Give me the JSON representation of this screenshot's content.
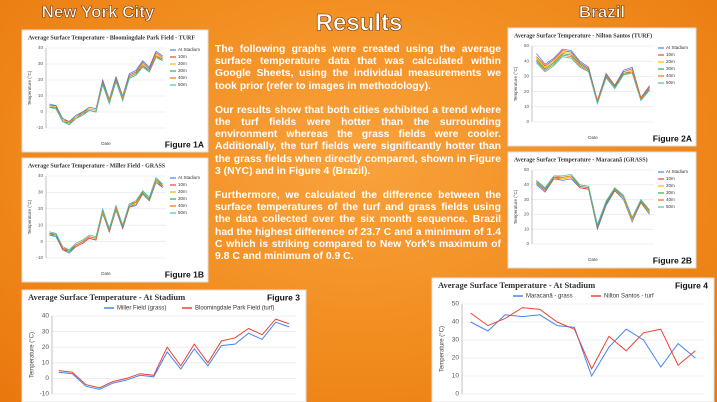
{
  "header": {
    "left": "New York City",
    "center": "Results",
    "right": "Brazil"
  },
  "text": {
    "paragraphs": [
      "The following graphs  were created using the average surface temperature data that was calculated within Google Sheets, using the individual measurements we took prior (refer to images in methodology).",
      "Our results show that both cities exhibited a trend where the turf fields were hotter than the surrounding environment whereas the grass fields were cooler. Additionally, the turf fields were significantly hotter than the grass fields when directly compared, shown in Figure 3 (NYC) and in Figure 4 (Brazil).",
      "Furthermore, we calculated the difference between the surface temperatures of the turf  and grass fields using the data collected over the six month sequence. Brazil had the highest difference of 23.7 C and a minimum of 1.4 C which is striking compared to New York's maximum of 9.8 C and minimum of 0.9 C."
    ]
  },
  "chart_data": [
    {
      "type": "line",
      "title": "Average Surface Temperature - Bloomingdale Park Field - TURF",
      "figure": "Figure 1A",
      "xlabel": "Date",
      "ylabel": "Temperature (°C)",
      "legend": "right",
      "grid": true,
      "categories": [
        null,
        null,
        null,
        null,
        null,
        null,
        null,
        null,
        null,
        null,
        null,
        null,
        null,
        null,
        null,
        null,
        null,
        null
      ],
      "ylim": [
        -10,
        40
      ],
      "yticks": [
        -10,
        0,
        10,
        20,
        30,
        40
      ],
      "series": [
        {
          "name": "At Stadium",
          "color": "#4285f4",
          "values": [
            5,
            4,
            -4,
            -6,
            -2,
            0,
            3,
            2,
            20,
            8,
            22,
            10,
            24,
            26,
            32,
            28,
            38,
            35
          ]
        },
        {
          "name": "10m",
          "color": "#ea4335",
          "values": [
            4,
            4,
            -5,
            -6,
            -3,
            0,
            2,
            1,
            19,
            7,
            21,
            9,
            23,
            25,
            31,
            27,
            37,
            34
          ]
        },
        {
          "name": "20m",
          "color": "#fbbc04",
          "values": [
            4,
            3,
            -5,
            -7,
            -3,
            -1,
            2,
            1,
            18,
            7,
            20,
            9,
            22,
            24,
            30,
            26,
            36,
            33
          ]
        },
        {
          "name": "30m",
          "color": "#34a853",
          "values": [
            3,
            3,
            -6,
            -7,
            -4,
            -1,
            1,
            0,
            18,
            6,
            20,
            8,
            22,
            24,
            29,
            26,
            35,
            33
          ]
        },
        {
          "name": "40m",
          "color": "#ff6d01",
          "values": [
            3,
            2,
            -6,
            -8,
            -4,
            -2,
            1,
            0,
            17,
            6,
            19,
            8,
            21,
            23,
            29,
            25,
            35,
            32
          ]
        },
        {
          "name": "50m",
          "color": "#46bdc6",
          "values": [
            3,
            2,
            -6,
            -8,
            -4,
            -2,
            1,
            0,
            17,
            5,
            19,
            7,
            21,
            23,
            28,
            25,
            34,
            32
          ]
        }
      ]
    },
    {
      "type": "line",
      "title": "Average Surface Temperature - Miller Field - GRASS",
      "figure": "Figure 1B",
      "xlabel": "Date",
      "ylabel": "Temperature (°C)",
      "legend": "right",
      "grid": true,
      "categories": [
        null,
        null,
        null,
        null,
        null,
        null,
        null,
        null,
        null,
        null,
        null,
        null,
        null,
        null,
        null,
        null,
        null,
        null
      ],
      "ylim": [
        -10,
        40
      ],
      "yticks": [
        -10,
        0,
        10,
        20,
        30,
        40
      ],
      "series": [
        {
          "name": "At Stadium",
          "color": "#4285f4",
          "values": [
            4,
            3,
            -5,
            -7,
            -3,
            -1,
            2,
            1,
            17,
            6,
            19,
            8,
            21,
            22,
            29,
            25,
            36,
            33
          ]
        },
        {
          "name": "10m",
          "color": "#ea4335",
          "values": [
            4,
            4,
            -5,
            -6,
            -3,
            -1,
            2,
            1,
            18,
            6,
            20,
            8,
            21,
            23,
            29,
            25,
            37,
            33
          ]
        },
        {
          "name": "20m",
          "color": "#fbbc04",
          "values": [
            5,
            4,
            -4,
            -6,
            -2,
            0,
            3,
            2,
            18,
            7,
            20,
            9,
            22,
            23,
            30,
            26,
            37,
            34
          ]
        },
        {
          "name": "30m",
          "color": "#34a853",
          "values": [
            5,
            4,
            -4,
            -6,
            -2,
            0,
            3,
            2,
            19,
            7,
            21,
            9,
            22,
            24,
            30,
            26,
            38,
            34
          ]
        },
        {
          "name": "40m",
          "color": "#ff6d01",
          "values": [
            5,
            5,
            -4,
            -5,
            -2,
            0,
            3,
            2,
            19,
            8,
            21,
            10,
            23,
            24,
            31,
            27,
            38,
            35
          ]
        },
        {
          "name": "50m",
          "color": "#46bdc6",
          "values": [
            6,
            5,
            -3,
            -5,
            -1,
            1,
            4,
            3,
            20,
            8,
            22,
            10,
            23,
            25,
            31,
            27,
            39,
            35
          ]
        }
      ]
    },
    {
      "type": "line",
      "title": "Average Surface Temperature - Nilton Santos (TURF)",
      "figure": "Figure 2A",
      "xlabel": "Date",
      "ylabel": "Temperature (°C)",
      "legend": "right",
      "grid": true,
      "categories": [
        null,
        null,
        null,
        null,
        null,
        null,
        null,
        null,
        null,
        null,
        null,
        null,
        null,
        null
      ],
      "ylim": [
        0,
        50
      ],
      "yticks": [
        0,
        10,
        20,
        30,
        40,
        50
      ],
      "series": [
        {
          "name": "At Stadium",
          "color": "#4285f4",
          "values": [
            45,
            38,
            42,
            48,
            47,
            40,
            36,
            14,
            32,
            24,
            34,
            36,
            16,
            24
          ]
        },
        {
          "name": "10m",
          "color": "#ea4335",
          "values": [
            43,
            37,
            41,
            47,
            46,
            39,
            35,
            14,
            31,
            24,
            33,
            35,
            16,
            23
          ]
        },
        {
          "name": "20m",
          "color": "#fbbc04",
          "values": [
            42,
            36,
            40,
            46,
            45,
            38,
            34,
            13,
            30,
            23,
            32,
            34,
            15,
            22
          ]
        },
        {
          "name": "30m",
          "color": "#34a853",
          "values": [
            41,
            35,
            39,
            45,
            44,
            38,
            34,
            13,
            30,
            23,
            32,
            33,
            15,
            22
          ]
        },
        {
          "name": "40m",
          "color": "#ff6d01",
          "values": [
            40,
            34,
            38,
            44,
            43,
            37,
            33,
            13,
            29,
            22,
            31,
            33,
            15,
            21
          ]
        },
        {
          "name": "50m",
          "color": "#46bdc6",
          "values": [
            39,
            33,
            37,
            43,
            42,
            36,
            33,
            12,
            29,
            22,
            31,
            32,
            14,
            21
          ]
        }
      ]
    },
    {
      "type": "line",
      "title": "Average Surface Temperature - Maracanã (GRASS)",
      "figure": "Figure 2B",
      "xlabel": "Date",
      "ylabel": "Temperature (°C)",
      "legend": "right",
      "grid": true,
      "categories": [
        null,
        null,
        null,
        null,
        null,
        null,
        null,
        null,
        null,
        null,
        null,
        null,
        null,
        null
      ],
      "ylim": [
        0,
        50
      ],
      "yticks": [
        0,
        10,
        20,
        30,
        40,
        50
      ],
      "series": [
        {
          "name": "At Stadium",
          "color": "#4285f4",
          "values": [
            40,
            35,
            44,
            43,
            44,
            38,
            37,
            10,
            26,
            36,
            30,
            15,
            28,
            20
          ]
        },
        {
          "name": "10m",
          "color": "#ea4335",
          "values": [
            41,
            36,
            44,
            44,
            45,
            38,
            37,
            11,
            27,
            36,
            31,
            16,
            28,
            21
          ]
        },
        {
          "name": "20m",
          "color": "#fbbc04",
          "values": [
            42,
            37,
            45,
            44,
            45,
            39,
            38,
            12,
            28,
            37,
            31,
            16,
            29,
            21
          ]
        },
        {
          "name": "30m",
          "color": "#34a853",
          "values": [
            42,
            37,
            45,
            45,
            46,
            39,
            38,
            12,
            28,
            37,
            32,
            17,
            29,
            22
          ]
        },
        {
          "name": "40m",
          "color": "#ff6d01",
          "values": [
            43,
            38,
            46,
            45,
            46,
            40,
            39,
            13,
            29,
            38,
            32,
            17,
            30,
            22
          ]
        },
        {
          "name": "50m",
          "color": "#46bdc6",
          "values": [
            43,
            38,
            46,
            46,
            47,
            40,
            39,
            13,
            29,
            38,
            33,
            18,
            30,
            23
          ]
        }
      ]
    },
    {
      "type": "line",
      "title": "Average Surface Temperature - At Stadium",
      "figure": "Figure 3",
      "ylabel": "Temperature (°C)",
      "legend": "top",
      "grid": true,
      "categories": [
        null,
        null,
        null,
        null,
        null,
        null,
        null,
        null,
        null,
        null,
        null,
        null,
        null,
        null,
        null,
        null,
        null,
        null
      ],
      "ylim": [
        -10,
        40
      ],
      "yticks": [
        -10,
        0,
        10,
        20,
        30,
        40
      ],
      "series": [
        {
          "name": "Miller Field (grass)",
          "color": "#4285f4",
          "values": [
            4,
            3,
            -5,
            -7,
            -3,
            -1,
            2,
            1,
            17,
            6,
            19,
            8,
            21,
            22,
            29,
            25,
            36,
            33
          ]
        },
        {
          "name": "Bloomingdale Park Field (turf)",
          "color": "#ea4335",
          "values": [
            5,
            4,
            -4,
            -6,
            -2,
            0,
            3,
            2,
            20,
            8,
            22,
            10,
            24,
            26,
            32,
            28,
            38,
            35
          ]
        }
      ]
    },
    {
      "type": "line",
      "title": "Average Surface Temperature - At Stadium",
      "figure": "Figure 4",
      "ylabel": "Temperature (°C)",
      "legend": "top",
      "grid": true,
      "categories": [
        null,
        null,
        null,
        null,
        null,
        null,
        null,
        null,
        null,
        null,
        null,
        null,
        null,
        null
      ],
      "ylim": [
        0,
        50
      ],
      "yticks": [
        0,
        10,
        20,
        30,
        40,
        50
      ],
      "series": [
        {
          "name": "Maracanã - grass",
          "color": "#4285f4",
          "values": [
            40,
            35,
            44,
            43,
            44,
            38,
            37,
            10,
            26,
            36,
            30,
            15,
            28,
            20
          ]
        },
        {
          "name": "Nilton Santos - turf",
          "color": "#ea4335",
          "values": [
            45,
            38,
            42,
            48,
            47,
            40,
            36,
            14,
            32,
            24,
            34,
            36,
            16,
            24
          ]
        }
      ]
    }
  ]
}
